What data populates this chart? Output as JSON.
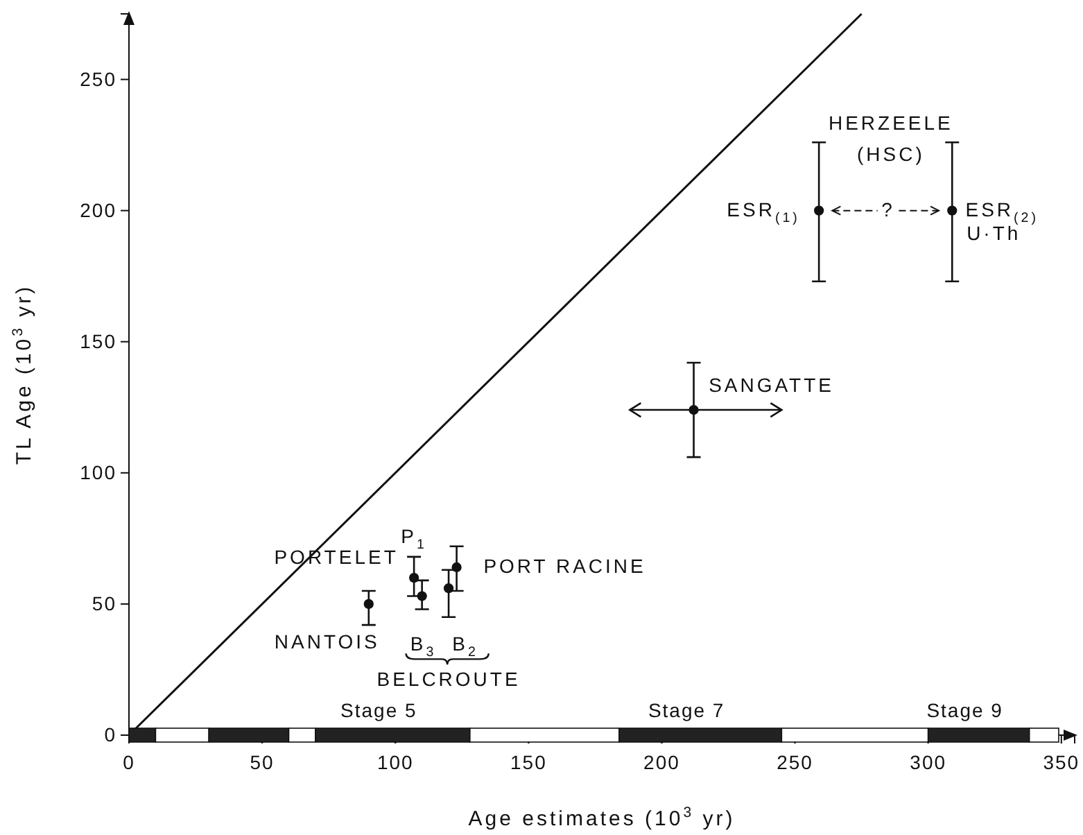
{
  "chart_data": [
    {
      "type": "scatter",
      "xlabel": "Age estimates (10$^{3}$ yr)",
      "ylabel": "TL Age (10$^{3}$ yr)",
      "xlim": [
        0,
        355
      ],
      "xticks": [
        0,
        50,
        100,
        150,
        200,
        250,
        300,
        350
      ],
      "ylim": [
        0,
        275
      ],
      "yticks": [
        0,
        50,
        100,
        150,
        200,
        250
      ],
      "grid": false,
      "marker": "circle",
      "tick_labels": "y",
      "series": [
        {
          "type": "line",
          "x": [
            0,
            275
          ],
          "values": [
            0,
            275
          ],
          "color": "#111111",
          "marker": "none",
          "line_style": "solid"
        },
        {
          "color": "#111111",
          "x": [
            90,
            107,
            110,
            120,
            123,
            212,
            259,
            309
          ],
          "values": [
            50,
            60,
            53,
            56,
            64,
            124,
            200,
            200
          ],
          "errors": [
            [
              42,
              55
            ],
            [
              53,
              68
            ],
            [
              48,
              59
            ],
            [
              45,
              63
            ],
            [
              55,
              72
            ],
            [
              106,
              142
            ],
            [
              173,
              226
            ],
            [
              173,
              226
            ]
          ],
          "xerrors": [
            null,
            null,
            null,
            null,
            null,
            [
              188,
              245
            ],
            null,
            null
          ]
        }
      ],
      "annotations": [
        {
          "text": "NANTOIS",
          "x": 90,
          "y": 50
        },
        {
          "text": "PORTELET",
          "x": 107,
          "y": 60
        },
        {
          "text": "P$_{1}$",
          "x": 107,
          "y": 60
        },
        {
          "text": "B$_{3}$",
          "x": 110,
          "y": 53
        },
        {
          "text": "B$_{2}$",
          "x": 120,
          "y": 56
        },
        "BELCROUTE",
        {
          "text": "PORT RACINE",
          "x": 123,
          "y": 64
        },
        {
          "text": "SANGATTE",
          "x": 212,
          "y": 124
        },
        "HERZEELE",
        "(HSC)",
        {
          "text": "ESR$_{(1)}$",
          "x": 259,
          "y": 200
        },
        "?",
        {
          "text": "ESR$_{(2)}$",
          "x": 309,
          "y": 200
        },
        {
          "text": "U·Th",
          "x": 309,
          "y": 200
        }
      ]
    },
    {
      "type": "bar",
      "orientation": "horizontal",
      "stacked": true,
      "categories": [
        null
      ],
      "xlim": [
        0,
        355
      ],
      "xticks": [
        0,
        50,
        100,
        150,
        200,
        250,
        300,
        350
      ],
      "tick_labels": "x",
      "series": [
        {
          "color": "#222222",
          "values": [
            10
          ]
        },
        {
          "color": "#ffffff",
          "values": [
            20
          ]
        },
        {
          "color": "#222222",
          "values": [
            30
          ]
        },
        {
          "color": "#ffffff",
          "values": [
            10
          ]
        },
        {
          "color": "#222222",
          "values": [
            58
          ]
        },
        {
          "color": "#ffffff",
          "values": [
            56
          ]
        },
        {
          "color": "#222222",
          "values": [
            61
          ]
        },
        {
          "color": "#ffffff",
          "values": [
            55
          ]
        },
        {
          "color": "#222222",
          "values": [
            38
          ]
        },
        {
          "color": "#ffffff",
          "values": [
            11
          ]
        }
      ],
      "annotations": [
        "Stage 5",
        "Stage 7",
        "Stage 9"
      ]
    }
  ]
}
